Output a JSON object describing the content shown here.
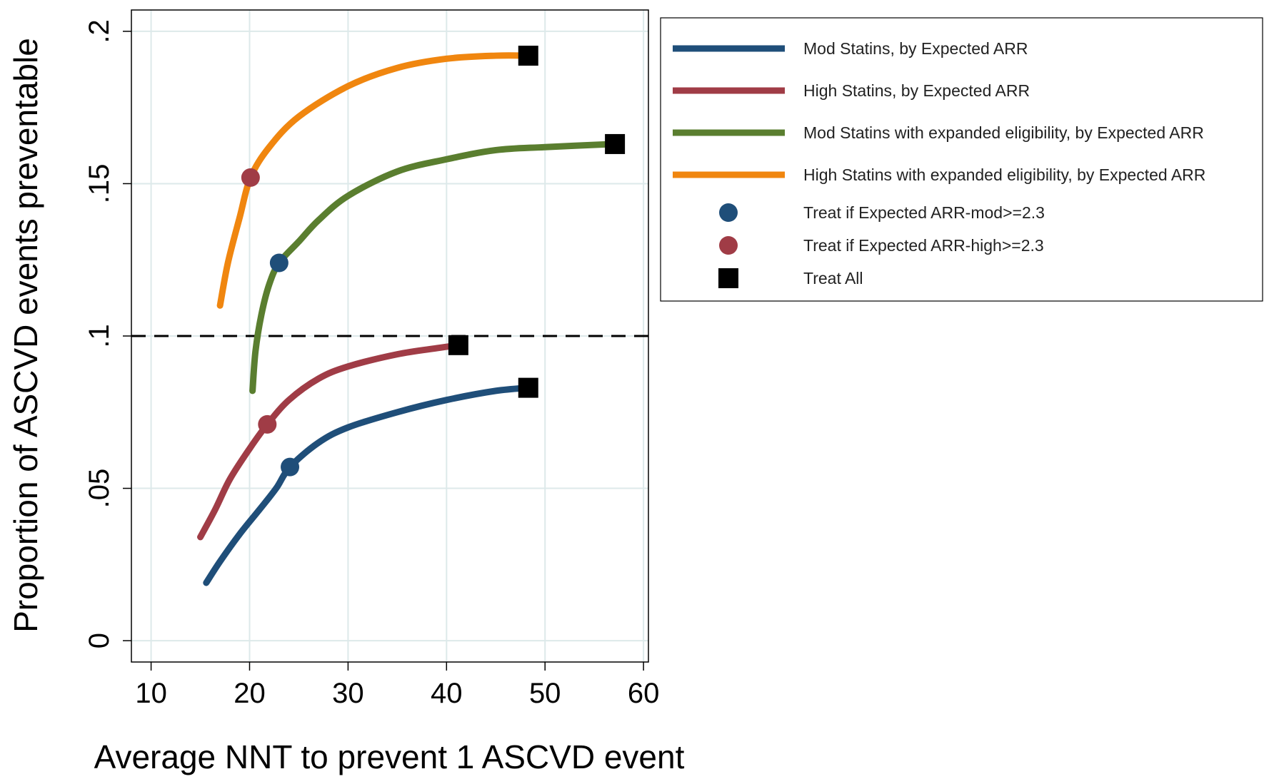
{
  "chart_data": {
    "type": "line",
    "xlabel": "Average NNT to prevent 1 ASCVD event",
    "ylabel": "Proportion of ASCVD events preventable",
    "xlim": [
      8,
      60.5
    ],
    "ylim": [
      -0.007,
      0.207
    ],
    "x_ticks": [
      10,
      20,
      30,
      40,
      50,
      60
    ],
    "x_tick_labels": [
      "10",
      "20",
      "30",
      "40",
      "50",
      "60"
    ],
    "y_ticks": [
      0,
      0.05,
      0.1,
      0.15,
      0.2
    ],
    "y_tick_labels": [
      "0",
      ".05",
      ".1",
      ".15",
      ".2"
    ],
    "grid": true,
    "reference_line": {
      "y": 0.1,
      "style": "dashed",
      "color": "#000000"
    },
    "legend_position": "right",
    "series": [
      {
        "name": "Mod Statins, by Expected ARR",
        "color": "#1f4e79",
        "points": [
          [
            15.6,
            0.019
          ],
          [
            17,
            0.026
          ],
          [
            19,
            0.035
          ],
          [
            21,
            0.043
          ],
          [
            22.7,
            0.05
          ],
          [
            24.1,
            0.057
          ],
          [
            27,
            0.065
          ],
          [
            30,
            0.07
          ],
          [
            35,
            0.075
          ],
          [
            40,
            0.079
          ],
          [
            45,
            0.082
          ],
          [
            48.3,
            0.083
          ]
        ]
      },
      {
        "name": "High Statins, by Expected ARR",
        "color": "#a03c46",
        "points": [
          [
            15,
            0.034
          ],
          [
            16.5,
            0.043
          ],
          [
            18,
            0.053
          ],
          [
            20,
            0.063
          ],
          [
            21.8,
            0.071
          ],
          [
            24,
            0.079
          ],
          [
            27,
            0.086
          ],
          [
            30,
            0.09
          ],
          [
            35,
            0.094
          ],
          [
            39,
            0.096
          ],
          [
            41.2,
            0.097
          ]
        ]
      },
      {
        "name": "Mod Statins with expanded eligibility, by Expected ARR",
        "color": "#5a7e2f",
        "points": [
          [
            20.3,
            0.082
          ],
          [
            20.6,
            0.095
          ],
          [
            21.2,
            0.107
          ],
          [
            22,
            0.117
          ],
          [
            23,
            0.124
          ],
          [
            25,
            0.131
          ],
          [
            27,
            0.138
          ],
          [
            30,
            0.146
          ],
          [
            35,
            0.154
          ],
          [
            40,
            0.158
          ],
          [
            45,
            0.161
          ],
          [
            50,
            0.162
          ],
          [
            57,
            0.163
          ]
        ]
      },
      {
        "name": "High Statins with expanded eligibility, by Expected ARR",
        "color": "#f0860f",
        "points": [
          [
            17,
            0.11
          ],
          [
            17.8,
            0.124
          ],
          [
            19,
            0.139
          ],
          [
            20.1,
            0.152
          ],
          [
            22,
            0.162
          ],
          [
            25,
            0.172
          ],
          [
            30,
            0.182
          ],
          [
            35,
            0.188
          ],
          [
            40,
            0.191
          ],
          [
            45,
            0.192
          ],
          [
            48.3,
            0.192
          ]
        ]
      }
    ],
    "markers": [
      {
        "name": "Treat if Expected ARR-mod>=2.3",
        "shape": "circle",
        "color": "#1f4e79",
        "points": [
          [
            23,
            0.124
          ],
          [
            24.1,
            0.057
          ]
        ]
      },
      {
        "name": "Treat if Expected ARR-high>=2.3",
        "shape": "circle",
        "color": "#a03c46",
        "points": [
          [
            20.1,
            0.152
          ],
          [
            21.8,
            0.071
          ]
        ]
      },
      {
        "name": "Treat All",
        "shape": "square",
        "color": "#000000",
        "points": [
          [
            48.3,
            0.192
          ],
          [
            57.1,
            0.163
          ],
          [
            41.2,
            0.097
          ],
          [
            48.3,
            0.083
          ]
        ]
      }
    ]
  }
}
